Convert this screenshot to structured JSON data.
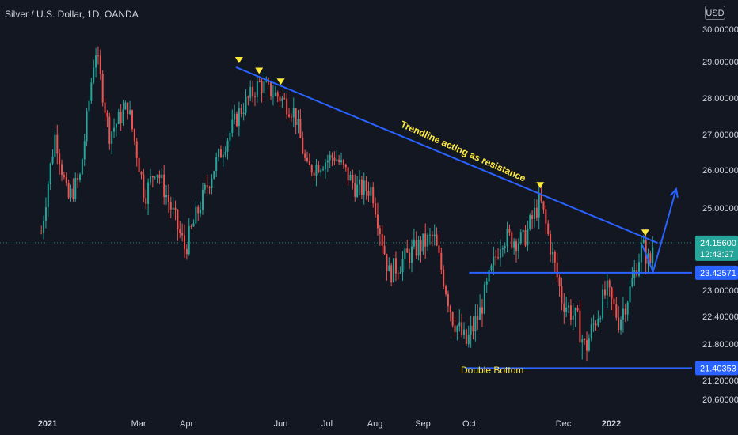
{
  "header": {
    "symbol_title": "Silver / U.S. Dollar, 1D, OANDA",
    "currency": "USD"
  },
  "colors": {
    "background": "#131722",
    "up": "#26a69a",
    "down": "#ef5350",
    "trendline": "#2962ff",
    "annotation": "#ffeb3b"
  },
  "chart_data": {
    "type": "candlestick",
    "title": "Silver / U.S. Dollar, 1D, OANDA",
    "y_unit": "USD",
    "ylim": [
      20.4,
      30.1
    ],
    "y_ticks": [
      "30.00000",
      "29.00000",
      "28.00000",
      "27.00000",
      "26.00000",
      "25.00000",
      "23.00000",
      "22.40000",
      "21.80000",
      "21.20000",
      "20.60000"
    ],
    "x_ticks": [
      "2021",
      "Mar",
      "Apr",
      "Jun",
      "Jul",
      "Aug",
      "Sep",
      "Oct",
      "Dec",
      "2022"
    ],
    "price_labels": [
      {
        "value": "24.15600",
        "sub": "12:43:27",
        "price": 24.156,
        "color": "#26a69a"
      },
      {
        "value": "23.42571",
        "price": 23.42571,
        "color": "#2962ff"
      },
      {
        "value": "21.40353",
        "price": 21.40353,
        "color": "#2962ff"
      }
    ],
    "annotations": {
      "trendline_label": "Trendline acting as resistance",
      "double_bottom_label": "Double Bottom"
    },
    "trendline_points": [
      {
        "x": "2021-05-03",
        "y": 28.85
      },
      {
        "x": "2022-01-31",
        "y": 24.15
      }
    ],
    "resistance_level": {
      "price": 23.42571,
      "from": "2021-10-01",
      "to": "2022-02-10"
    },
    "support_level": {
      "price": 21.40353,
      "from": "2021-09-28",
      "to": "2022-02-10"
    },
    "projection_path": [
      {
        "x": "2022-01-21",
        "y": 24.1
      },
      {
        "x": "2022-01-28",
        "y": 23.45
      },
      {
        "x": "2022-02-12",
        "y": 25.5
      }
    ],
    "markers": [
      {
        "x": "2021-05-05",
        "y": 29.05
      },
      {
        "x": "2021-05-18",
        "y": 28.75
      },
      {
        "x": "2021-06-01",
        "y": 28.45
      },
      {
        "x": "2021-11-16",
        "y": 25.6
      },
      {
        "x": "2022-01-23",
        "y": 24.4
      }
    ],
    "path_points": [
      {
        "x": "2020-12-28",
        "y": 24.4
      },
      {
        "x": "2021-01-06",
        "y": 27.0
      },
      {
        "x": "2021-01-14",
        "y": 25.2
      },
      {
        "x": "2021-01-22",
        "y": 25.8
      },
      {
        "x": "2021-02-01",
        "y": 29.4
      },
      {
        "x": "2021-02-10",
        "y": 27.0
      },
      {
        "x": "2021-02-22",
        "y": 27.8
      },
      {
        "x": "2021-03-05",
        "y": 25.3
      },
      {
        "x": "2021-03-12",
        "y": 26.1
      },
      {
        "x": "2021-03-31",
        "y": 24.0
      },
      {
        "x": "2021-04-20",
        "y": 26.2
      },
      {
        "x": "2021-05-05",
        "y": 27.6
      },
      {
        "x": "2021-05-18",
        "y": 28.4
      },
      {
        "x": "2021-06-01",
        "y": 28.0
      },
      {
        "x": "2021-06-10",
        "y": 27.6
      },
      {
        "x": "2021-06-18",
        "y": 26.0
      },
      {
        "x": "2021-07-06",
        "y": 26.4
      },
      {
        "x": "2021-07-20",
        "y": 25.5
      },
      {
        "x": "2021-07-30",
        "y": 25.5
      },
      {
        "x": "2021-08-10",
        "y": 23.4
      },
      {
        "x": "2021-08-27",
        "y": 24.0
      },
      {
        "x": "2021-09-08",
        "y": 24.3
      },
      {
        "x": "2021-09-20",
        "y": 22.4
      },
      {
        "x": "2021-09-29",
        "y": 21.8
      },
      {
        "x": "2021-10-08",
        "y": 22.5
      },
      {
        "x": "2021-10-22",
        "y": 24.3
      },
      {
        "x": "2021-11-05",
        "y": 24.2
      },
      {
        "x": "2021-11-16",
        "y": 25.2
      },
      {
        "x": "2021-11-30",
        "y": 22.8
      },
      {
        "x": "2021-12-10",
        "y": 22.3
      },
      {
        "x": "2021-12-15",
        "y": 21.7
      },
      {
        "x": "2021-12-29",
        "y": 23.0
      },
      {
        "x": "2022-01-06",
        "y": 22.3
      },
      {
        "x": "2022-01-13",
        "y": 23.0
      },
      {
        "x": "2022-01-21",
        "y": 24.1
      },
      {
        "x": "2022-01-26",
        "y": 23.6
      },
      {
        "x": "2022-01-28",
        "y": 24.15
      }
    ]
  }
}
